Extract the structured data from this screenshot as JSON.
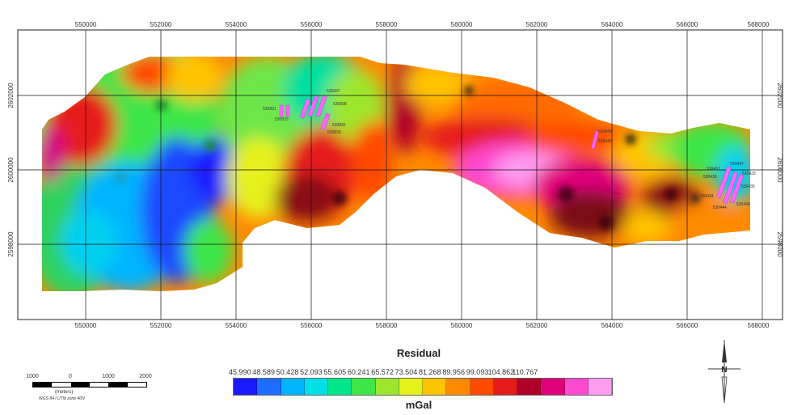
{
  "map": {
    "top_ticks": [
      "550000",
      "552000",
      "554000",
      "556000",
      "558000",
      "560000",
      "562000",
      "564000",
      "566000",
      "568000"
    ],
    "bottom_ticks": [
      "550000",
      "552000",
      "554000",
      "556000",
      "558000",
      "560000",
      "562000",
      "564000",
      "566000",
      "568000"
    ],
    "left_ticks": [
      "2602000",
      "2600000",
      "2598000"
    ],
    "right_ticks": [
      "2602000",
      "2600000",
      "2598000"
    ],
    "sites": [
      {
        "label": "530837"
      },
      {
        "label": "530838"
      },
      {
        "label": "530831"
      },
      {
        "label": "530833"
      },
      {
        "label": "530832"
      },
      {
        "label": "530839"
      },
      {
        "label": "530848"
      },
      {
        "label": "530440"
      },
      {
        "label": "530437"
      },
      {
        "label": "530447"
      },
      {
        "label": "530433"
      },
      {
        "label": "530436"
      },
      {
        "label": "530435"
      },
      {
        "label": "530434"
      },
      {
        "label": "530446"
      },
      {
        "label": "530444"
      }
    ]
  },
  "legend": {
    "title": "Residual",
    "unit": "mGal",
    "values": [
      "45.990",
      "48.589",
      "50.428",
      "52.093",
      "55.605",
      "60.241",
      "65.572",
      "73.504",
      "81.268",
      "89.956",
      "99.093",
      "104.862",
      "110.767"
    ],
    "colors": [
      "#1a1aff",
      "#1e6bff",
      "#00b4ff",
      "#00e0e6",
      "#00e68a",
      "#3ee64a",
      "#9ee62e",
      "#e6f01a",
      "#ffc400",
      "#ff8a00",
      "#ff4a00",
      "#e61a1a",
      "#b0002a",
      "#e0007a",
      "#ff4ad0",
      "#ff9cf0"
    ]
  },
  "scale_bar": {
    "labels": [
      "1000",
      "0",
      "1000",
      "2000"
    ],
    "unit": "(meters)",
    "projection": "WGS 84 / UTM zone 40N"
  },
  "north_arrow": {
    "letter": "N"
  }
}
